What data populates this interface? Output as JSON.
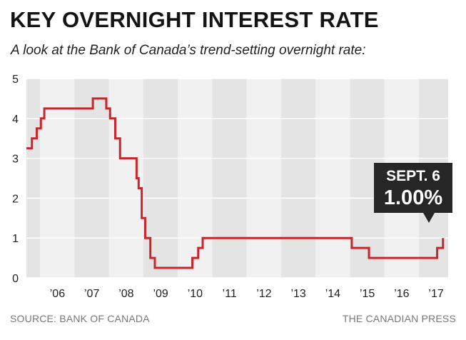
{
  "header": {
    "title": "KEY OVERNIGHT INTEREST RATE",
    "subtitle": "A look at the Bank of Canada’s trend-setting overnight rate:"
  },
  "footer": {
    "source": "SOURCE: BANK OF CANADA",
    "credit": "THE CANADIAN PRESS"
  },
  "callout": {
    "date": "SEPT. 6",
    "value": "1.00%"
  },
  "colors": {
    "line": "#c8262d",
    "band_dark": "#e4e4e4",
    "band_light": "#f1f1f1",
    "callout_bg": "#262626"
  },
  "chart_data": {
    "type": "line",
    "step": true,
    "title": "KEY OVERNIGHT INTEREST RATE",
    "subtitle": "A look at the Bank of Canada’s trend-setting overnight rate:",
    "xlabel": "",
    "ylabel": "",
    "xlim": [
      2005.6,
      2017.85
    ],
    "ylim": [
      0,
      5
    ],
    "yticks": [
      0,
      1,
      2,
      3,
      4,
      5
    ],
    "x_tick_labels": [
      "’06",
      "’07",
      "’08",
      "’09",
      "’10",
      "’11",
      "’12",
      "’13",
      "’14",
      "’15",
      "’16",
      "’17"
    ],
    "grid": "alternating year bands",
    "series": [
      {
        "values": [
          [
            2005.6,
            3.25
          ],
          [
            2005.76,
            3.5
          ],
          [
            2005.9,
            3.75
          ],
          [
            2006.02,
            4.0
          ],
          [
            2006.12,
            4.25
          ],
          [
            2007.53,
            4.5
          ],
          [
            2007.92,
            4.25
          ],
          [
            2008.03,
            4.0
          ],
          [
            2008.18,
            3.5
          ],
          [
            2008.32,
            3.0
          ],
          [
            2008.8,
            2.5
          ],
          [
            2008.86,
            2.25
          ],
          [
            2008.95,
            1.5
          ],
          [
            2009.05,
            1.0
          ],
          [
            2009.2,
            0.5
          ],
          [
            2009.33,
            0.25
          ],
          [
            2010.42,
            0.5
          ],
          [
            2010.59,
            0.75
          ],
          [
            2010.72,
            1.0
          ],
          [
            2015.05,
            0.75
          ],
          [
            2015.55,
            0.5
          ],
          [
            2017.53,
            0.75
          ],
          [
            2017.7,
            1.0
          ]
        ]
      }
    ],
    "annotations": [
      {
        "text": "SEPT. 6",
        "x": 2017.7,
        "y": 1.0
      },
      {
        "text": "1.00%",
        "x": 2017.7,
        "y": 1.0
      }
    ]
  }
}
